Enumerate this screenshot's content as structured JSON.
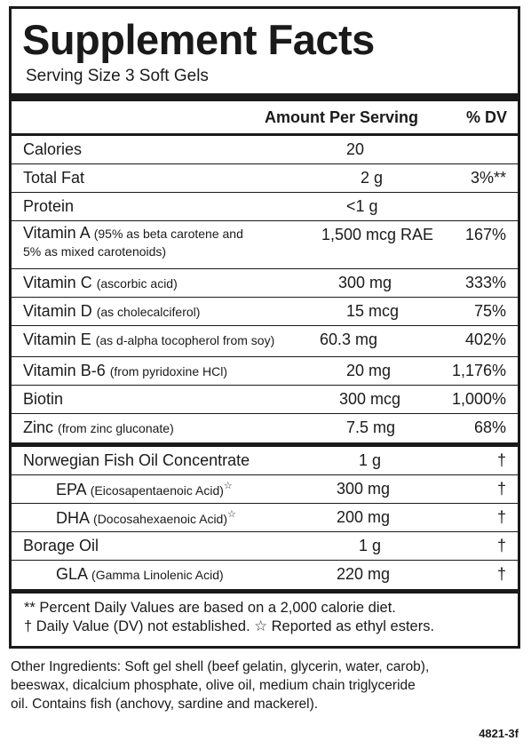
{
  "title": "Supplement Facts",
  "serving_size": "Serving Size 3 Soft Gels",
  "header": {
    "amount": "Amount Per Serving",
    "dv": "% DV"
  },
  "nutrients": [
    {
      "name": "Calories",
      "detail": "",
      "amount": "20",
      "dv": ""
    },
    {
      "name": "Total Fat",
      "detail": "",
      "amount": "2 g",
      "dv": "3%**"
    },
    {
      "name": "Protein",
      "detail": "",
      "amount": "<1 g",
      "dv": ""
    },
    {
      "name": "Vitamin A",
      "detail": "(95% as beta carotene and",
      "detail2": "5% as mixed carotenoids)",
      "amount": "1,500 mcg RAE",
      "dv": "167%"
    },
    {
      "name": "Vitamin C",
      "detail": "(ascorbic acid)",
      "amount": "300 mg",
      "dv": "333%"
    },
    {
      "name": "Vitamin D",
      "detail": "(as cholecalciferol)",
      "amount": "15 mcg",
      "dv": "75%"
    },
    {
      "name": "Vitamin E",
      "detail": "(as d-alpha tocopherol from soy)",
      "amount": "60.3 mg",
      "dv": "402%"
    },
    {
      "name": "Vitamin B-6",
      "detail": "(from pyridoxine HCl)",
      "amount": "20 mg",
      "dv": "1,176%"
    },
    {
      "name": "Biotin",
      "detail": "",
      "amount": "300 mcg",
      "dv": "1,000%"
    },
    {
      "name": "Zinc",
      "detail": "(from zinc gluconate)",
      "amount": "7.5 mg",
      "dv": "68%"
    }
  ],
  "oils": [
    {
      "name": "Norwegian Fish Oil Concentrate",
      "detail": "",
      "amount": "1 g",
      "dv": "†"
    },
    {
      "name": "EPA",
      "detail": "(Eicosapentaenoic Acid)",
      "mark": "☆",
      "amount": "300 mg",
      "dv": "†"
    },
    {
      "name": "DHA",
      "detail": "(Docosahexaenoic Acid)",
      "mark": "☆",
      "amount": "200 mg",
      "dv": "†"
    },
    {
      "name": "Borage Oil",
      "detail": "",
      "amount": "1 g",
      "dv": "†"
    },
    {
      "name": "GLA",
      "detail": "(Gamma Linolenic Acid)",
      "amount": "220 mg",
      "dv": "†"
    }
  ],
  "footnotes": [
    "** Percent Daily Values are based on a 2,000 calorie diet.",
    "† Daily Value (DV) not established. ☆ Reported as ethyl esters."
  ],
  "other_ingredients": [
    "Other Ingredients: Soft gel shell (beef gelatin, glycerin, water, carob),",
    "beeswax, dicalcium phosphate, olive oil, medium chain triglyceride",
    "oil.  Contains fish (anchovy, sardine and mackerel)."
  ],
  "product_code": "4821-3f"
}
